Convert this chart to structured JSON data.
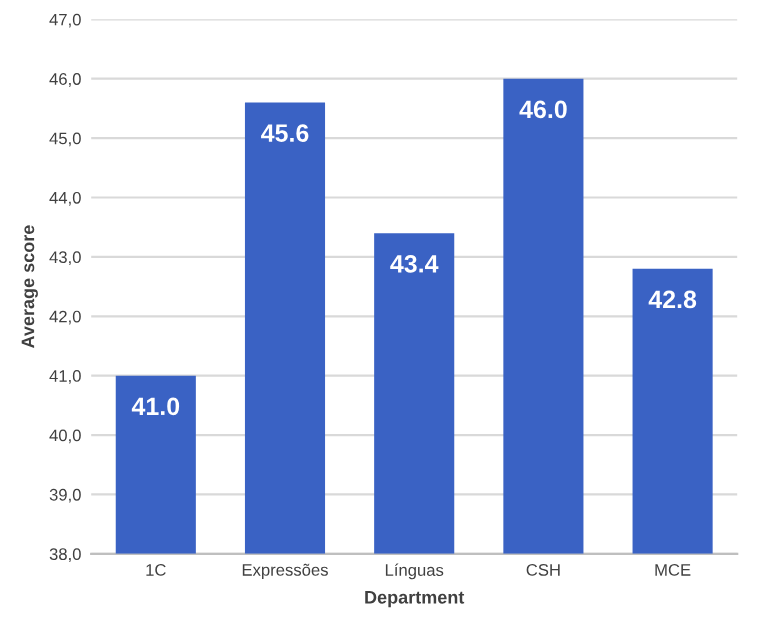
{
  "chart_data": {
    "type": "bar",
    "xlabel": "Department",
    "ylabel": "Average score",
    "categories": [
      "1C",
      "Expressões",
      "Línguas",
      "CSH",
      "MCE"
    ],
    "values": [
      41.0,
      45.6,
      43.4,
      46.0,
      42.8
    ],
    "value_labels": [
      "41.0",
      "45.6",
      "43.4",
      "46.0",
      "42.8"
    ],
    "color": "#3a62c4",
    "ylim": [
      38,
      47
    ],
    "yticks": [
      {
        "value": 38,
        "label": "38,0"
      },
      {
        "value": 39,
        "label": "39,0"
      },
      {
        "value": 40,
        "label": "40,0"
      },
      {
        "value": 41,
        "label": "41,0"
      },
      {
        "value": 42,
        "label": "42,0"
      },
      {
        "value": 43,
        "label": "43,0"
      },
      {
        "value": 44,
        "label": "44,0"
      },
      {
        "value": 45,
        "label": "45,0"
      },
      {
        "value": 46,
        "label": "46,0"
      },
      {
        "value": 47,
        "label": "47,0"
      }
    ],
    "grid": "y"
  }
}
